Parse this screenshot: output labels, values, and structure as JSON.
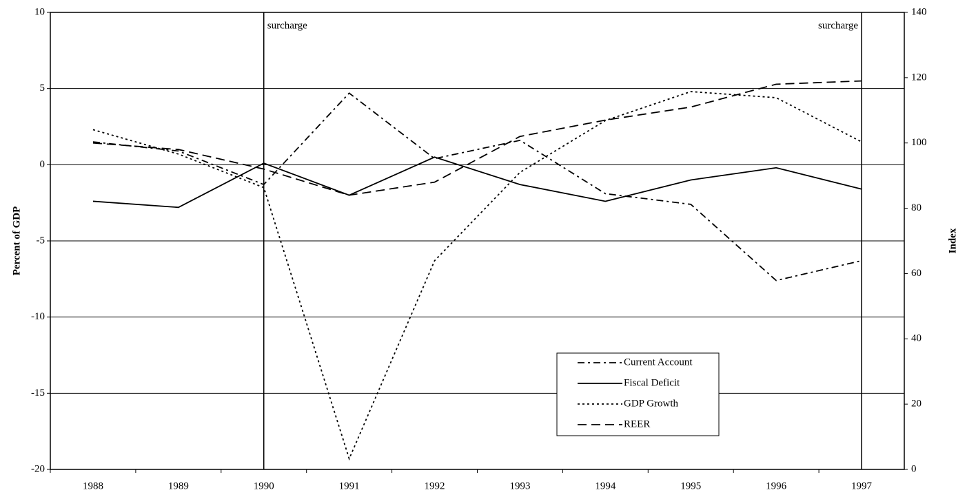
{
  "chart_data": {
    "type": "line",
    "y_label": "Percent  of GDP",
    "y2_label": "Index",
    "categories": [
      "1988",
      "1989",
      "1990",
      "1991",
      "1992",
      "1993",
      "1994",
      "1995",
      "1996",
      "1997"
    ],
    "series": [
      {
        "name": "Current Account",
        "color": "#000000",
        "line_style": "dash-dot",
        "values": [
          1.5,
          0.9,
          -1.3,
          4.7,
          0.4,
          1.6,
          -1.9,
          -2.6,
          -7.6,
          -6.3
        ]
      },
      {
        "name": "Fiscal Deficit",
        "color": "#000000",
        "line_style": "solid",
        "values": [
          -2.4,
          -2.8,
          0.1,
          -2.0,
          0.5,
          -1.3,
          -2.4,
          -1.0,
          -0.2,
          -1.6
        ]
      },
      {
        "name": "GDP Growth",
        "color": "#000000",
        "line_style": "dotted",
        "values": [
          2.3,
          0.7,
          -1.5,
          -19.3,
          -6.3,
          -0.5,
          2.9,
          4.8,
          4.4,
          1.5
        ]
      },
      {
        "name": "REER",
        "color": "#000000",
        "line_style": "dashed",
        "axis": "y2",
        "values": [
          100,
          98,
          92,
          84,
          88,
          102,
          107,
          111,
          118,
          119
        ]
      }
    ],
    "ylim": [
      -20,
      10
    ],
    "yticks": [
      -20,
      -15,
      -10,
      -5,
      0,
      5,
      10
    ],
    "y2lim": [
      0,
      140
    ],
    "y2ticks": [
      0,
      20,
      40,
      60,
      80,
      100,
      120,
      140
    ],
    "grid": true,
    "legend_position": "lower-right",
    "annotations": [
      {
        "text": "surcharge",
        "at": "1990"
      },
      {
        "text": "surcharge",
        "at": "1997"
      }
    ]
  }
}
